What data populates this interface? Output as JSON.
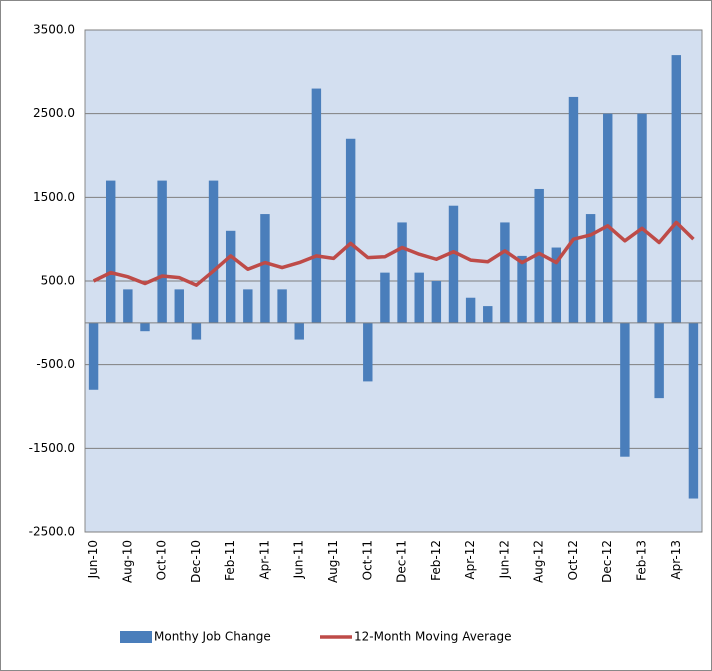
{
  "chart_data": {
    "type": "bar-line",
    "categories": [
      "Jun-10",
      null,
      "Aug-10",
      null,
      "Oct-10",
      null,
      "Dec-10",
      null,
      "Feb-11",
      null,
      "Apr-11",
      null,
      "Jun-11",
      null,
      "Aug-11",
      null,
      "Oct-11",
      null,
      "Dec-11",
      null,
      "Feb-12",
      null,
      "Apr-12",
      null,
      "Jun-12",
      null,
      "Aug-12",
      null,
      "Oct-12",
      null,
      "Dec-12",
      null,
      "Feb-13",
      null,
      "Apr-13",
      null
    ],
    "series": [
      {
        "name": "Monthy Job Change",
        "type": "bar",
        "color": "#4a7ebb",
        "values": [
          -800,
          1700,
          400,
          -100,
          1700,
          400,
          -200,
          1700,
          1100,
          400,
          1300,
          400,
          -200,
          2800,
          0,
          2200,
          -700,
          600,
          1200,
          600,
          500,
          1400,
          300,
          200,
          1200,
          800,
          1600,
          900,
          2700,
          1300,
          2500,
          -1600,
          2500,
          -900,
          3200,
          -2100
        ]
      },
      {
        "name": "12-Month Moving Average",
        "type": "line",
        "color": "#be4b48",
        "values": [
          500,
          600,
          550,
          470,
          560,
          540,
          450,
          620,
          800,
          640,
          720,
          660,
          720,
          800,
          770,
          950,
          780,
          790,
          900,
          820,
          760,
          850,
          750,
          730,
          860,
          720,
          830,
          720,
          1000,
          1050,
          1160,
          980,
          1130,
          960,
          1200,
          1000
        ]
      }
    ],
    "ylim": [
      -2500,
      3500
    ],
    "yticks": [
      {
        "value": -2500,
        "label": "-2500.0"
      },
      {
        "value": -1500,
        "label": "-1500.0"
      },
      {
        "value": -500,
        "label": "-500.0"
      },
      {
        "value": 500,
        "label": "500.0"
      },
      {
        "value": 1500,
        "label": "1500.0"
      },
      {
        "value": 2500,
        "label": "2500.0"
      },
      {
        "value": 3500,
        "label": "3500.0"
      }
    ],
    "grid": true,
    "legend": "bottom"
  }
}
